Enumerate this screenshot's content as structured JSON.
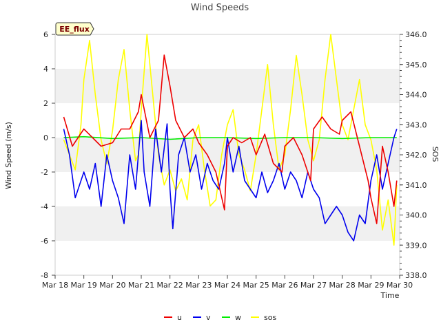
{
  "chart_data": {
    "type": "line",
    "title": "Wind Speeds",
    "xlabel": "Time",
    "ylabel": "Wind Speed (m/s)",
    "y2label": "SOS",
    "badge": "EE_flux",
    "ylim": [
      -8,
      6
    ],
    "y2lim": [
      338.0,
      346.0
    ],
    "yticks": [
      "-8",
      "-6",
      "-4",
      "-2",
      "0",
      "2",
      "4",
      "6"
    ],
    "y2ticks": [
      "338.0",
      "339.0",
      "340.0",
      "341.0",
      "342.0",
      "343.0",
      "344.0",
      "345.0",
      "346.0"
    ],
    "x_tick_labels": [
      "Mar 18",
      "Mar 19",
      "Mar 20",
      "Mar 21",
      "Mar 22",
      "Mar 23",
      "Mar 24",
      "Mar 25",
      "Mar 26",
      "Mar 27",
      "Mar 28",
      "Mar 29",
      "Mar 30"
    ],
    "xlim_days": [
      18,
      30
    ],
    "grid": "horizontal bands",
    "legend_position": "bottom-center",
    "series": [
      {
        "name": "u",
        "color": "#ee0000",
        "axis": "left",
        "x": [
          18.3,
          18.6,
          19.0,
          19.3,
          19.6,
          20.0,
          20.3,
          20.6,
          20.9,
          21.0,
          21.3,
          21.6,
          21.8,
          22.0,
          22.2,
          22.5,
          22.8,
          23.0,
          23.3,
          23.6,
          23.9,
          24.0,
          24.2,
          24.5,
          24.8,
          25.0,
          25.3,
          25.6,
          25.9,
          26.0,
          26.3,
          26.6,
          26.9,
          27.0,
          27.3,
          27.6,
          27.9,
          28.0,
          28.3,
          28.6,
          28.9,
          29.0,
          29.2,
          29.4,
          29.6,
          29.8,
          29.9
        ],
        "y": [
          1.2,
          -0.5,
          0.5,
          0.0,
          -0.5,
          -0.3,
          0.5,
          0.5,
          1.5,
          2.5,
          0.0,
          1.0,
          4.8,
          3.0,
          1.0,
          0.0,
          0.5,
          -0.3,
          -1.0,
          -2.0,
          -4.2,
          -0.5,
          0.0,
          -0.3,
          0.0,
          -1.0,
          0.2,
          -1.5,
          -2.0,
          -0.5,
          0.0,
          -1.0,
          -2.5,
          0.5,
          1.2,
          0.5,
          0.2,
          1.0,
          1.5,
          -0.5,
          -2.5,
          -3.5,
          -5.0,
          -0.5,
          -2.0,
          -4.0,
          -2.5
        ]
      },
      {
        "name": "v",
        "color": "#0000ee",
        "axis": "left",
        "x": [
          18.3,
          18.5,
          18.7,
          19.0,
          19.2,
          19.4,
          19.6,
          19.8,
          20.0,
          20.2,
          20.4,
          20.6,
          20.8,
          21.0,
          21.1,
          21.3,
          21.5,
          21.7,
          21.9,
          22.0,
          22.1,
          22.3,
          22.5,
          22.7,
          22.9,
          23.1,
          23.3,
          23.5,
          23.7,
          23.9,
          24.0,
          24.2,
          24.4,
          24.6,
          24.8,
          25.0,
          25.2,
          25.4,
          25.6,
          25.8,
          26.0,
          26.2,
          26.4,
          26.6,
          26.8,
          27.0,
          27.2,
          27.4,
          27.6,
          27.8,
          28.0,
          28.2,
          28.4,
          28.6,
          28.8,
          29.0,
          29.2,
          29.4,
          29.6,
          29.8,
          29.9
        ],
        "y": [
          0.5,
          -1.0,
          -3.5,
          -2.0,
          -3.0,
          -1.5,
          -4.0,
          -1.0,
          -2.5,
          -3.5,
          -5.0,
          -1.0,
          -3.0,
          1.0,
          -2.0,
          -4.0,
          0.5,
          -2.0,
          0.8,
          -3.0,
          -5.3,
          -1.0,
          0.0,
          -2.0,
          -1.0,
          -3.0,
          -1.5,
          -2.5,
          -3.0,
          -1.5,
          0.0,
          -2.0,
          -0.5,
          -2.5,
          -3.0,
          -3.5,
          -2.0,
          -3.2,
          -2.5,
          -1.5,
          -3.0,
          -2.0,
          -2.5,
          -3.5,
          -2.0,
          -3.0,
          -3.5,
          -5.0,
          -4.5,
          -4.0,
          -4.5,
          -5.5,
          -6.0,
          -4.5,
          -5.0,
          -2.5,
          -1.0,
          -3.0,
          -1.5,
          0.0,
          0.5
        ]
      },
      {
        "name": "w",
        "color": "#00ee00",
        "axis": "left",
        "x": [
          18.3,
          19.0,
          20.0,
          21.0,
          22.0,
          23.0,
          24.0,
          25.0,
          26.0,
          27.0,
          28.0,
          29.0,
          29.9
        ],
        "y": [
          0.0,
          0.05,
          -0.05,
          0.0,
          -0.1,
          0.0,
          0.0,
          -0.05,
          0.0,
          0.0,
          -0.05,
          0.0,
          0.0
        ]
      },
      {
        "name": "sos",
        "color": "#ffff00",
        "axis": "right",
        "x": [
          18.3,
          18.5,
          18.7,
          18.9,
          19.0,
          19.2,
          19.4,
          19.6,
          19.8,
          20.0,
          20.2,
          20.4,
          20.6,
          20.8,
          20.9,
          21.0,
          21.2,
          21.4,
          21.6,
          21.8,
          22.0,
          22.2,
          22.4,
          22.6,
          22.8,
          23.0,
          23.2,
          23.4,
          23.6,
          23.8,
          24.0,
          24.2,
          24.4,
          24.6,
          24.8,
          25.0,
          25.2,
          25.4,
          25.6,
          25.8,
          26.0,
          26.2,
          26.4,
          26.6,
          26.8,
          27.0,
          27.2,
          27.4,
          27.6,
          27.8,
          28.0,
          28.2,
          28.4,
          28.6,
          28.8,
          29.0,
          29.2,
          29.4,
          29.6,
          29.8,
          29.9
        ],
        "y": [
          342.5,
          342.0,
          341.5,
          343.0,
          344.5,
          345.8,
          344.0,
          342.5,
          341.7,
          342.8,
          344.5,
          345.5,
          343.5,
          341.8,
          342.0,
          343.5,
          346.0,
          344.0,
          342.0,
          341.0,
          341.5,
          340.8,
          341.2,
          340.5,
          342.5,
          343.0,
          341.5,
          340.3,
          340.5,
          342.0,
          343.0,
          343.5,
          342.0,
          341.5,
          340.8,
          342.0,
          343.5,
          345.0,
          343.0,
          341.5,
          342.0,
          343.5,
          345.3,
          344.0,
          342.5,
          341.8,
          342.5,
          344.5,
          346.0,
          344.5,
          343.0,
          342.5,
          343.5,
          344.5,
          343.0,
          342.5,
          341.5,
          339.5,
          340.5,
          339.0,
          341.0
        ]
      }
    ]
  }
}
